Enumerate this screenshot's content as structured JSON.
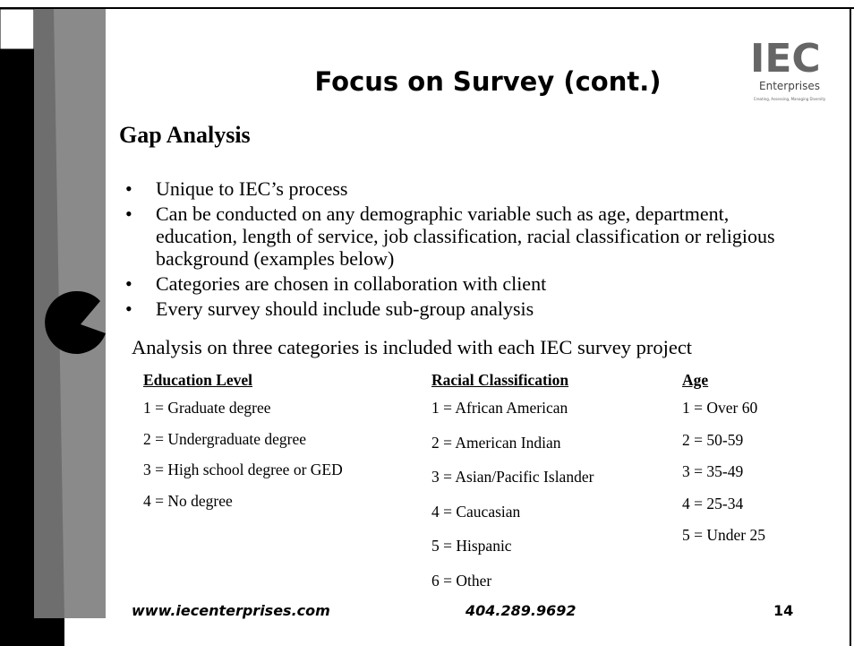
{
  "slide": {
    "title": "Focus on Survey (cont.)",
    "logo": {
      "text": "IEC",
      "name": "Enterprises",
      "tagline": "Creating, Assessing, Managing Diversity"
    },
    "heading": "Gap Analysis",
    "bullets": [
      "Unique to IEC’s process",
      "Can be conducted on any demographic variable such as age, department, education, length of service, job classification, racial classification or religious background (examples below)",
      "Categories are chosen in collaboration with client",
      "Every survey should include sub-group analysis"
    ],
    "intro": "Analysis on three categories is included with each IEC survey project",
    "columns": [
      {
        "header": "Education Level",
        "items": [
          "1 = Graduate degree",
          "2 = Undergraduate degree",
          "3 = High school degree or GED",
          "4 = No degree"
        ]
      },
      {
        "header": "Racial Classification",
        "items": [
          "1 = African American",
          "2 = American Indian",
          "3 = Asian/Pacific Islander",
          "4 = Caucasian",
          "5 = Hispanic",
          "6 = Other"
        ]
      },
      {
        "header": "Age",
        "items": [
          "1 = Over 60",
          "2 = 50-59",
          "3 = 35-49",
          "4 = 25-34",
          "5 = Under 25"
        ]
      }
    ],
    "footer": {
      "website": "www.iecenterprises.com",
      "phone": "404.289.9692",
      "page": "14"
    }
  }
}
